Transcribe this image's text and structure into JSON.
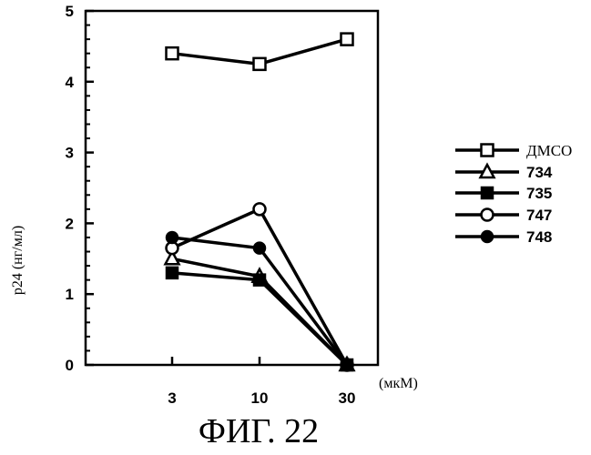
{
  "chart_data": {
    "type": "line",
    "title": "",
    "xlabel": "",
    "x_unit": "(мкМ)",
    "ylabel": "p24 (нг/мл)",
    "caption": "ФИГ. 22",
    "categories": [
      "3",
      "10",
      "30"
    ],
    "ylim": [
      0,
      5
    ],
    "yticks": [
      "0",
      "1",
      "2",
      "3",
      "4",
      "5"
    ],
    "legend_position": "right",
    "series": [
      {
        "name": "ДМСО",
        "marker": "square-open",
        "values": [
          4.4,
          4.25,
          4.6
        ]
      },
      {
        "name": "734",
        "marker": "triangle-open",
        "values": [
          1.5,
          1.25,
          0
        ]
      },
      {
        "name": "735",
        "marker": "square-filled",
        "values": [
          1.3,
          1.2,
          0
        ]
      },
      {
        "name": "747",
        "marker": "circle-open",
        "values": [
          1.65,
          2.2,
          0
        ]
      },
      {
        "name": "748",
        "marker": "circle-filled",
        "values": [
          1.8,
          1.65,
          0
        ]
      }
    ]
  }
}
